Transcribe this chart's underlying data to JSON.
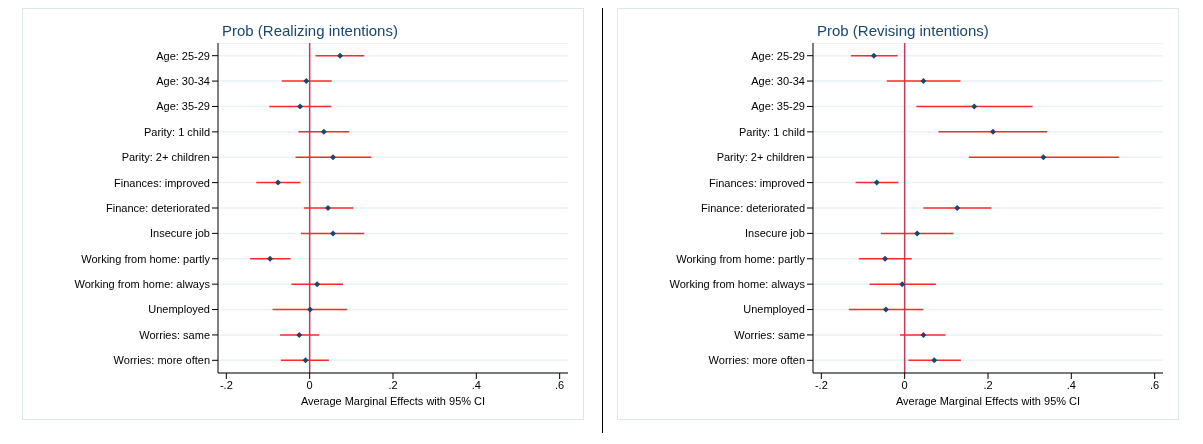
{
  "chart_data": [
    {
      "type": "scatter",
      "orientation": "horizontal",
      "title": "Prob (Realizing intentions)",
      "xlabel": "Average Marginal Effects with 95% CI",
      "categories": [
        "Age: 25-29",
        "Age: 30-34",
        "Age: 35-29",
        "Parity: 1 child",
        "Parity: 2+ children",
        "Finances: improved",
        "Finance: deteriorated",
        "Insecure job",
        "Working from home: partly",
        "Working from home: always",
        "Unemployed",
        "Worries: same",
        "Worries: more often"
      ],
      "values": [
        0.073,
        -0.008,
        -0.023,
        0.034,
        0.056,
        -0.076,
        0.044,
        0.056,
        -0.095,
        0.018,
        0.001,
        -0.025,
        -0.01
      ],
      "errors": [
        [
          0.014,
          0.131
        ],
        [
          -0.067,
          0.053
        ],
        [
          -0.097,
          0.052
        ],
        [
          -0.027,
          0.095
        ],
        [
          -0.034,
          0.148
        ],
        [
          -0.128,
          -0.022
        ],
        [
          -0.014,
          0.105
        ],
        [
          -0.021,
          0.131
        ],
        [
          -0.143,
          -0.046
        ],
        [
          -0.044,
          0.08
        ],
        [
          -0.089,
          0.09
        ],
        [
          -0.071,
          0.023
        ],
        [
          -0.069,
          0.046
        ]
      ],
      "color": "#1a476f",
      "marker": "diamond",
      "grid": "y",
      "xlim": [
        -0.22,
        0.62
      ],
      "xticks": [
        {
          "value": -0.2,
          "label": "-.2"
        },
        0,
        {
          "value": 0.2,
          "label": ".2"
        },
        {
          "value": 0.4,
          "label": ".4"
        },
        {
          "value": 0.6,
          "label": ".6"
        }
      ],
      "ref_lines": [
        {
          "axis": "x",
          "value": 0,
          "color": "#c8385a"
        }
      ]
    },
    {
      "type": "scatter",
      "orientation": "horizontal",
      "title": "Prob (Revising intentions)",
      "xlabel": "Average Marginal Effects with 95% CI",
      "categories": [
        "Age: 25-29",
        "Age: 30-34",
        "Age: 35-29",
        "Parity: 1 child",
        "Parity: 2+ children",
        "Finances: improved",
        "Finance: deteriorated",
        "Insecure job",
        "Working from home: partly",
        "Working from home: always",
        "Unemployed",
        "Worries: same",
        "Worries: more often"
      ],
      "values": [
        -0.074,
        0.045,
        0.167,
        0.212,
        0.333,
        -0.067,
        0.126,
        0.03,
        -0.047,
        -0.006,
        -0.045,
        0.045,
        0.071
      ],
      "errors": [
        [
          -0.129,
          -0.017
        ],
        [
          -0.043,
          0.134
        ],
        [
          0.028,
          0.307
        ],
        [
          0.081,
          0.342
        ],
        [
          0.154,
          0.514
        ],
        [
          -0.118,
          -0.015
        ],
        [
          0.045,
          0.208
        ],
        [
          -0.057,
          0.117
        ],
        [
          -0.11,
          0.017
        ],
        [
          -0.084,
          0.075
        ],
        [
          -0.134,
          0.045
        ],
        [
          -0.011,
          0.098
        ],
        [
          0.009,
          0.135
        ]
      ],
      "color": "#1a476f",
      "marker": "diamond",
      "grid": "y",
      "xlim": [
        -0.22,
        0.62
      ],
      "xticks": [
        {
          "value": -0.2,
          "label": "-.2"
        },
        0,
        {
          "value": 0.2,
          "label": ".2"
        },
        {
          "value": 0.4,
          "label": ".4"
        },
        {
          "value": 0.6,
          "label": ".6"
        }
      ],
      "ref_lines": [
        {
          "axis": "x",
          "value": 0,
          "color": "#c8385a"
        }
      ]
    }
  ]
}
